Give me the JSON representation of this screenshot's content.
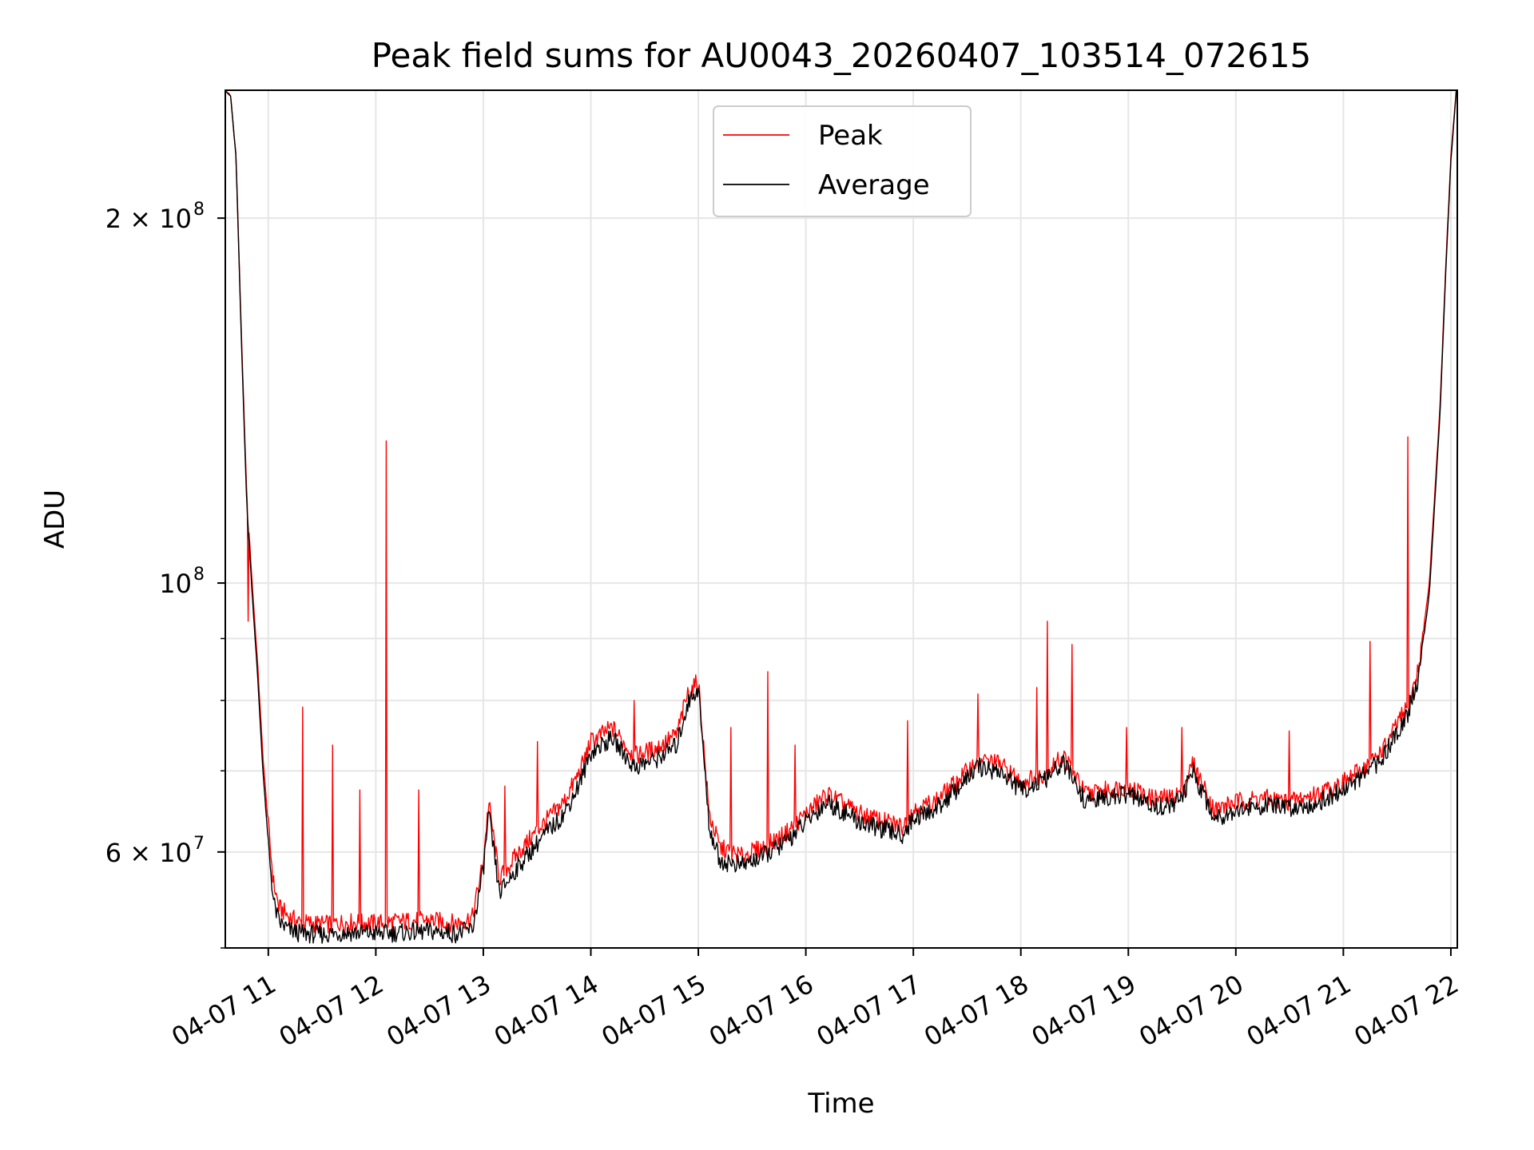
{
  "chart_data": {
    "type": "line",
    "title": "Peak field sums for AU0043_20260407_103514_072615",
    "xlabel": "Time",
    "ylabel": "ADU",
    "y_scale": "log",
    "ylim": [
      50000000,
      255000000
    ],
    "xlim": [
      "04-07 10:35",
      "04-07 22:05"
    ],
    "grid": true,
    "legend_position": "top-center",
    "x_ticks": [
      "04-07 11",
      "04-07 12",
      "04-07 13",
      "04-07 14",
      "04-07 15",
      "04-07 16",
      "04-07 17",
      "04-07 18",
      "04-07 19",
      "04-07 20",
      "04-07 21",
      "04-07 22"
    ],
    "y_tick_labels": {
      "six_e7": {
        "mantissa": "6 × 10",
        "exp": "7",
        "value": 60000000
      },
      "one_e8": {
        "mantissa": "10",
        "exp": "8",
        "value": 100000000
      },
      "two_e8": {
        "mantissa": "2 × 10",
        "exp": "8",
        "value": 200000000
      }
    },
    "y_minor_ticks": [
      50000000,
      70000000,
      80000000,
      90000000
    ],
    "x_unit": "hours of 04-07",
    "series": [
      {
        "name": "Peak",
        "color": "#ff0000",
        "x": [
          10.6,
          10.65,
          10.7,
          10.75,
          10.8,
          10.85,
          10.9,
          10.95,
          11.0,
          11.05,
          11.1,
          11.2,
          11.3,
          11.5,
          11.75,
          12.0,
          12.25,
          12.5,
          12.75,
          12.9,
          13.0,
          13.05,
          13.15,
          13.3,
          13.5,
          13.75,
          13.9,
          14.0,
          14.2,
          14.4,
          14.6,
          14.8,
          14.9,
          15.0,
          15.1,
          15.2,
          15.4,
          15.6,
          15.8,
          16.0,
          16.2,
          16.5,
          16.75,
          16.9,
          17.0,
          17.2,
          17.4,
          17.6,
          17.8,
          18.0,
          18.2,
          18.4,
          18.6,
          18.8,
          19.0,
          19.2,
          19.4,
          19.5,
          19.6,
          19.8,
          20.0,
          20.25,
          20.5,
          20.75,
          21.0,
          21.25,
          21.4,
          21.5,
          21.6,
          21.7,
          21.8,
          21.9,
          21.95,
          22.0,
          22.05
        ],
        "y": [
          255000000,
          252000000,
          225000000,
          160000000,
          118000000,
          100000000,
          86000000,
          72000000,
          63000000,
          56500000,
          54000000,
          53000000,
          52500000,
          52300000,
          52500000,
          52400000,
          52600000,
          52700000,
          52400000,
          53000000,
          59000000,
          66000000,
          57000000,
          59500000,
          62500000,
          66000000,
          70000000,
          74000000,
          76000000,
          72000000,
          73000000,
          75000000,
          81000000,
          83000000,
          64500000,
          60500000,
          59500000,
          60500000,
          62000000,
          64500000,
          67000000,
          64500000,
          63500000,
          63000000,
          65000000,
          66000000,
          68500000,
          71500000,
          71000000,
          68500000,
          69500000,
          72000000,
          67000000,
          67500000,
          68000000,
          66500000,
          66500000,
          67500000,
          71000000,
          65000000,
          66000000,
          66500000,
          66000000,
          67000000,
          68500000,
          71000000,
          73500000,
          76500000,
          79000000,
          85000000,
          100000000,
          140000000,
          180000000,
          225000000,
          255000000
        ],
        "spikes": [
          {
            "x": 10.81,
            "y": 93000000
          },
          {
            "x": 11.32,
            "y": 79000000
          },
          {
            "x": 11.6,
            "y": 73500000
          },
          {
            "x": 11.85,
            "y": 67500000
          },
          {
            "x": 12.1,
            "y": 131000000
          },
          {
            "x": 12.4,
            "y": 67500000
          },
          {
            "x": 13.2,
            "y": 68000000
          },
          {
            "x": 13.5,
            "y": 74000000
          },
          {
            "x": 14.4,
            "y": 80000000
          },
          {
            "x": 14.9,
            "y": 82000000
          },
          {
            "x": 15.3,
            "y": 76000000
          },
          {
            "x": 15.65,
            "y": 84500000
          },
          {
            "x": 15.9,
            "y": 73500000
          },
          {
            "x": 16.95,
            "y": 77000000
          },
          {
            "x": 17.6,
            "y": 81000000
          },
          {
            "x": 18.15,
            "y": 82000000
          },
          {
            "x": 18.25,
            "y": 93000000
          },
          {
            "x": 18.48,
            "y": 89000000
          },
          {
            "x": 18.98,
            "y": 76000000
          },
          {
            "x": 19.1,
            "y": 68000000
          },
          {
            "x": 19.5,
            "y": 76000000
          },
          {
            "x": 20.5,
            "y": 75500000
          },
          {
            "x": 21.25,
            "y": 89500000
          },
          {
            "x": 21.6,
            "y": 132000000
          }
        ]
      },
      {
        "name": "Average",
        "color": "#000000",
        "x": [
          10.6,
          10.65,
          10.7,
          10.75,
          10.8,
          10.85,
          10.9,
          10.95,
          11.0,
          11.05,
          11.1,
          11.2,
          11.3,
          11.5,
          11.75,
          12.0,
          12.25,
          12.5,
          12.75,
          12.9,
          13.0,
          13.05,
          13.15,
          13.3,
          13.5,
          13.75,
          13.9,
          14.0,
          14.2,
          14.4,
          14.6,
          14.8,
          14.9,
          15.0,
          15.1,
          15.2,
          15.4,
          15.6,
          15.8,
          16.0,
          16.2,
          16.5,
          16.75,
          16.9,
          17.0,
          17.2,
          17.4,
          17.6,
          17.8,
          18.0,
          18.2,
          18.4,
          18.6,
          18.8,
          19.0,
          19.2,
          19.4,
          19.5,
          19.6,
          19.8,
          20.0,
          20.25,
          20.5,
          20.75,
          21.0,
          21.25,
          21.4,
          21.5,
          21.6,
          21.7,
          21.8,
          21.9,
          21.95,
          22.0,
          22.05
        ],
        "y": [
          255000000,
          252000000,
          224000000,
          158000000,
          116000000,
          98000000,
          84000000,
          70000000,
          61000000,
          54500000,
          52500000,
          51700000,
          51400000,
          51300000,
          51500000,
          51400000,
          51500000,
          51600000,
          51400000,
          51800000,
          58000000,
          64500000,
          55500000,
          58000000,
          61000000,
          64500000,
          68500000,
          72500000,
          74500000,
          70500000,
          71500000,
          73500000,
          79500000,
          82000000,
          63000000,
          59000000,
          58500000,
          59500000,
          61000000,
          63500000,
          66000000,
          63500000,
          62500000,
          62000000,
          64000000,
          65000000,
          67500000,
          70500000,
          70000000,
          67500000,
          68500000,
          71000000,
          66000000,
          66500000,
          67000000,
          65500000,
          65500000,
          66500000,
          70000000,
          64000000,
          65000000,
          65500000,
          65300000,
          65800000,
          67500000,
          70000000,
          72500000,
          75500000,
          78000000,
          83500000,
          98000000,
          138000000,
          178000000,
          223000000,
          255000000
        ]
      }
    ]
  }
}
